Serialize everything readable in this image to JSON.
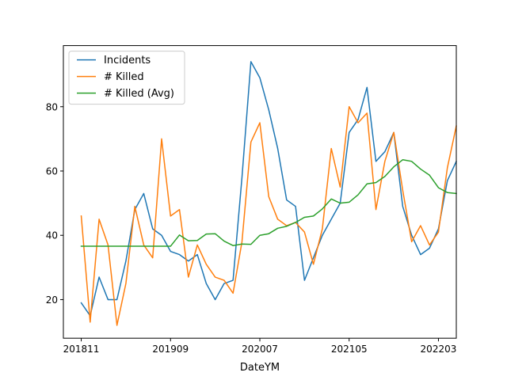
{
  "chart_data": {
    "type": "line",
    "xlabel": "DateYM",
    "ylabel": "",
    "title": "",
    "xlim": [
      -2,
      42
    ],
    "ylim": [
      8,
      99
    ],
    "x_ticks": [
      {
        "index": 0,
        "label": "201811"
      },
      {
        "index": 10,
        "label": "201909"
      },
      {
        "index": 20,
        "label": "202007"
      },
      {
        "index": 30,
        "label": "202105"
      },
      {
        "index": 40,
        "label": "202203"
      }
    ],
    "y_ticks": [
      20,
      40,
      60,
      80
    ],
    "grid": false,
    "legend_position": "upper-left",
    "x": [
      "201811",
      "201812",
      "201901",
      "201902",
      "201903",
      "201904",
      "201905",
      "201906",
      "201907",
      "201908",
      "201909",
      "201910",
      "201911",
      "201912",
      "202001",
      "202002",
      "202003",
      "202004",
      "202005",
      "202006",
      "202007",
      "202008",
      "202009",
      "202010",
      "202011",
      "202012",
      "202101",
      "202102",
      "202103",
      "202104",
      "202105",
      "202106",
      "202107",
      "202108",
      "202109",
      "202110",
      "202111",
      "202112",
      "202201",
      "202202",
      "202203",
      "202204",
      "202205"
    ],
    "series": [
      {
        "name": "Incidents",
        "color": "#1f77b4",
        "values": [
          19,
          15,
          27,
          20,
          20,
          32,
          48,
          53,
          42,
          40,
          35,
          34,
          32,
          34,
          25,
          20,
          25,
          26,
          58,
          94,
          89,
          79,
          67,
          51,
          49,
          26,
          33,
          40,
          45,
          50,
          72,
          76,
          86,
          63,
          66,
          72,
          49,
          40,
          34,
          36,
          42,
          57,
          63
        ]
      },
      {
        "name": "# Killed",
        "color": "#ff7f0e",
        "values": [
          46,
          13,
          45,
          37,
          12,
          25,
          49,
          37,
          33,
          70,
          46,
          48,
          27,
          37,
          31,
          27,
          26,
          22,
          38,
          69,
          75,
          52,
          45,
          43,
          44,
          41,
          31,
          42,
          67,
          55,
          80,
          75,
          78,
          48,
          63,
          72,
          54,
          38,
          43,
          37,
          41,
          61,
          74
        ]
      },
      {
        "name": "# Killed (Avg)",
        "color": "#2ca02c",
        "values": [
          36.6,
          36.6,
          36.6,
          36.6,
          36.6,
          36.6,
          36.6,
          36.6,
          36.6,
          36.6,
          36.6,
          40.1,
          38.3,
          38.4,
          40.4,
          40.5,
          38.2,
          36.8,
          37.3,
          37.2,
          40.0,
          40.5,
          42.2,
          42.8,
          44.0,
          45.6,
          46.0,
          48.2,
          51.3,
          50.0,
          50.3,
          52.6,
          56.0,
          56.4,
          58.3,
          61.3,
          63.5,
          63.0,
          60.6,
          58.7,
          54.8,
          53.3,
          53.0
        ]
      }
    ]
  }
}
